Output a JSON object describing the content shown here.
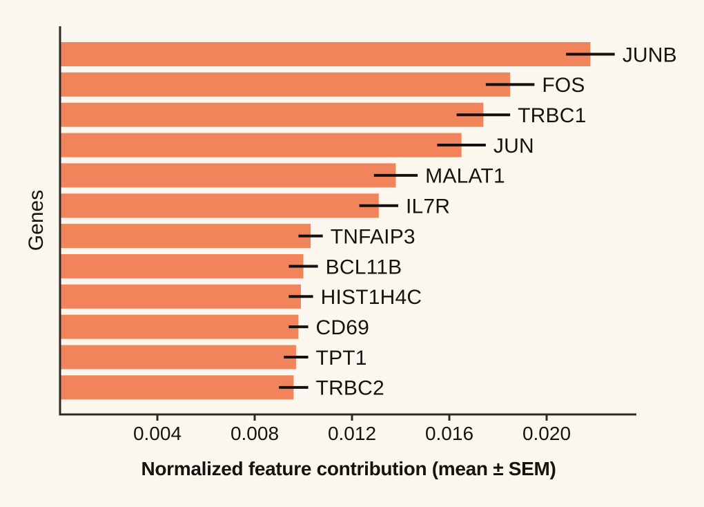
{
  "figure": {
    "background_color": "#FBF7EE",
    "bar_color": "#F2845C",
    "spine_color": "#2E2A26",
    "errorbar_color": "#121110",
    "text_color": "#16130F"
  },
  "chart_data": {
    "type": "bar",
    "orientation": "horizontal",
    "title": "",
    "xlabel": "Normalized feature contribution (mean ± SEM)",
    "ylabel": "Genes",
    "grid": false,
    "legend": "none",
    "xlim": [
      0,
      0.0237
    ],
    "xticks": [
      0.004,
      0.008,
      0.012,
      0.016,
      0.02
    ],
    "xtick_labels": [
      "0.004",
      "0.008",
      "0.012",
      "0.016",
      "0.020"
    ],
    "categories": [
      "JUNB",
      "FOS",
      "TRBC1",
      "JUN",
      "MALAT1",
      "IL7R",
      "TNFAIP3",
      "BCL11B",
      "HIST1H4C",
      "CD69",
      "TPT1",
      "TRBC2"
    ],
    "series": [
      {
        "name": "mean",
        "values": [
          0.0218,
          0.0185,
          0.0174,
          0.0165,
          0.0138,
          0.0131,
          0.0103,
          0.01,
          0.0099,
          0.0098,
          0.0097,
          0.0096
        ]
      }
    ],
    "sem": [
      0.001,
      0.001,
      0.0011,
      0.001,
      0.0009,
      0.0008,
      0.0005,
      0.0006,
      0.0005,
      0.0004,
      0.0005,
      0.0006
    ]
  }
}
